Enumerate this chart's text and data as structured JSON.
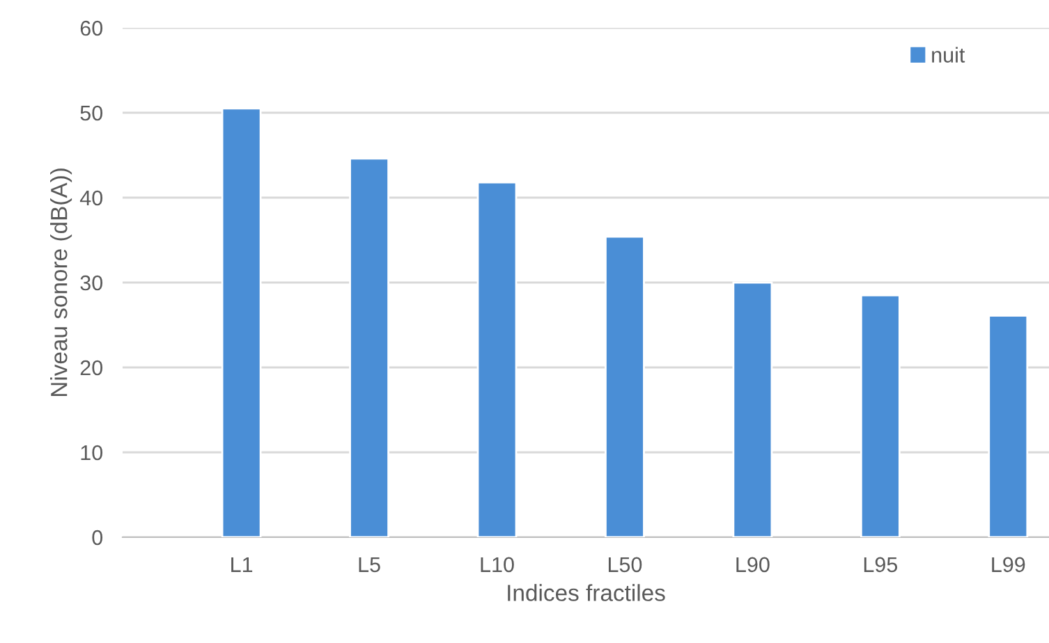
{
  "chart_data": {
    "type": "bar",
    "xlabel": "Indices fractiles",
    "ylabel": "Niveau sonore (dB(A))",
    "categories": [
      "L1",
      "L5",
      "L10",
      "L50",
      "L90",
      "L95",
      "L99"
    ],
    "series": [
      {
        "name": "nuit",
        "color": "#4a8ed6",
        "values": [
          50.5,
          44.6,
          41.8,
          35.4,
          30.0,
          28.5,
          26.1
        ]
      }
    ],
    "ylim": [
      0,
      60
    ],
    "yticks": [
      0,
      10,
      20,
      30,
      40,
      50,
      60
    ],
    "grid": "y",
    "legend": "top right"
  }
}
